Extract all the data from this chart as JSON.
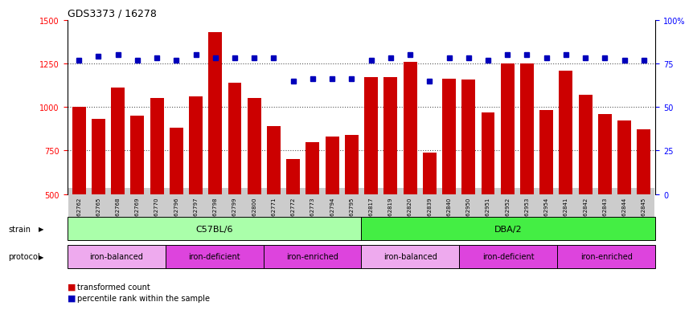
{
  "title": "GDS3373 / 16278",
  "samples": [
    "GSM262762",
    "GSM262765",
    "GSM262768",
    "GSM262769",
    "GSM262770",
    "GSM262796",
    "GSM262797",
    "GSM262798",
    "GSM262799",
    "GSM262800",
    "GSM262771",
    "GSM262772",
    "GSM262773",
    "GSM262794",
    "GSM262795",
    "GSM262817",
    "GSM262819",
    "GSM262820",
    "GSM262839",
    "GSM262840",
    "GSM262950",
    "GSM262951",
    "GSM262952",
    "GSM262953",
    "GSM262954",
    "GSM262841",
    "GSM262842",
    "GSM262843",
    "GSM262844",
    "GSM262845"
  ],
  "bar_values": [
    1000,
    930,
    1110,
    950,
    1050,
    880,
    1060,
    1430,
    1140,
    1050,
    890,
    700,
    800,
    830,
    840,
    1170,
    1170,
    1260,
    740,
    1160,
    1155,
    970,
    1250,
    1250,
    980,
    1210,
    1070,
    960,
    920,
    870
  ],
  "percentile_values": [
    77,
    79,
    80,
    77,
    78,
    77,
    80,
    78,
    78,
    78,
    78,
    65,
    66,
    66,
    66,
    77,
    78,
    80,
    65,
    78,
    78,
    77,
    80,
    80,
    78,
    80,
    78,
    78,
    77,
    77
  ],
  "bar_color": "#cc0000",
  "percentile_color": "#0000bb",
  "ylim_left": [
    500,
    1500
  ],
  "ylim_right": [
    0,
    100
  ],
  "yticks_left": [
    500,
    750,
    1000,
    1250,
    1500
  ],
  "yticks_right": [
    0,
    25,
    50,
    75,
    100
  ],
  "grid_vals": [
    750,
    1000,
    1250
  ],
  "strain_groups": [
    {
      "label": "C57BL/6",
      "start": 0,
      "end": 15,
      "color": "#aaffaa"
    },
    {
      "label": "DBA/2",
      "start": 15,
      "end": 30,
      "color": "#44ee44"
    }
  ],
  "protocol_groups": [
    {
      "label": "iron-balanced",
      "start": 0,
      "end": 5,
      "color": "#eeaaee"
    },
    {
      "label": "iron-deficient",
      "start": 5,
      "end": 10,
      "color": "#dd44dd"
    },
    {
      "label": "iron-enriched",
      "start": 10,
      "end": 15,
      "color": "#dd44dd"
    },
    {
      "label": "iron-balanced",
      "start": 15,
      "end": 20,
      "color": "#eeaaee"
    },
    {
      "label": "iron-deficient",
      "start": 20,
      "end": 25,
      "color": "#dd44dd"
    },
    {
      "label": "iron-enriched",
      "start": 25,
      "end": 30,
      "color": "#dd44dd"
    }
  ],
  "plot_bg": "#ffffff",
  "tick_bg": "#cccccc",
  "grid_color": "#555555",
  "fig_bg": "#ffffff"
}
